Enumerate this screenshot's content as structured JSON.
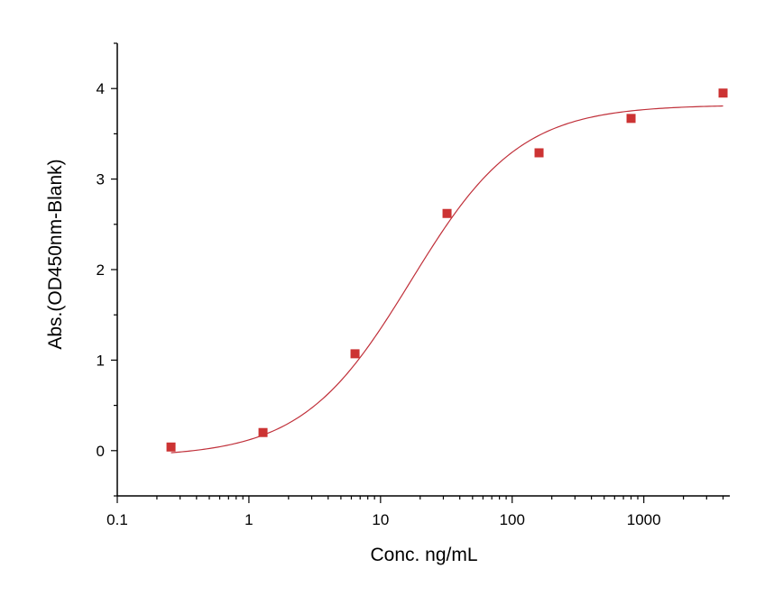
{
  "chart_data": {
    "type": "scatter",
    "title": "",
    "xlabel": "Conc. ng/mL",
    "ylabel": "Abs.(OD450nm-Blank)",
    "xscale": "log",
    "xlim": [
      0.1,
      4500
    ],
    "ylim": [
      -0.5,
      4.5
    ],
    "x_ticks": [
      0.1,
      1,
      10,
      100,
      1000
    ],
    "x_tick_labels": [
      "0.1",
      "1",
      "10",
      "100",
      "1000"
    ],
    "y_ticks": [
      0,
      1,
      2,
      3,
      4
    ],
    "y_tick_labels": [
      "0",
      "1",
      "2",
      "3",
      "4"
    ],
    "grid": false,
    "colors": {
      "marker": "#cc3333",
      "curve": "#c0303a",
      "axis": "#000000"
    },
    "series": [
      {
        "marker": "square",
        "x": [
          0.256,
          1.28,
          6.4,
          32,
          160,
          800,
          4000
        ],
        "y": [
          0.04,
          0.2,
          1.07,
          2.62,
          3.29,
          3.67,
          3.95
        ]
      }
    ],
    "fit": {
      "type": "4PL",
      "bottom": -0.07,
      "top": 3.82,
      "ec50": 17,
      "hill": 1.05,
      "x_range": [
        0.256,
        4000
      ]
    }
  }
}
